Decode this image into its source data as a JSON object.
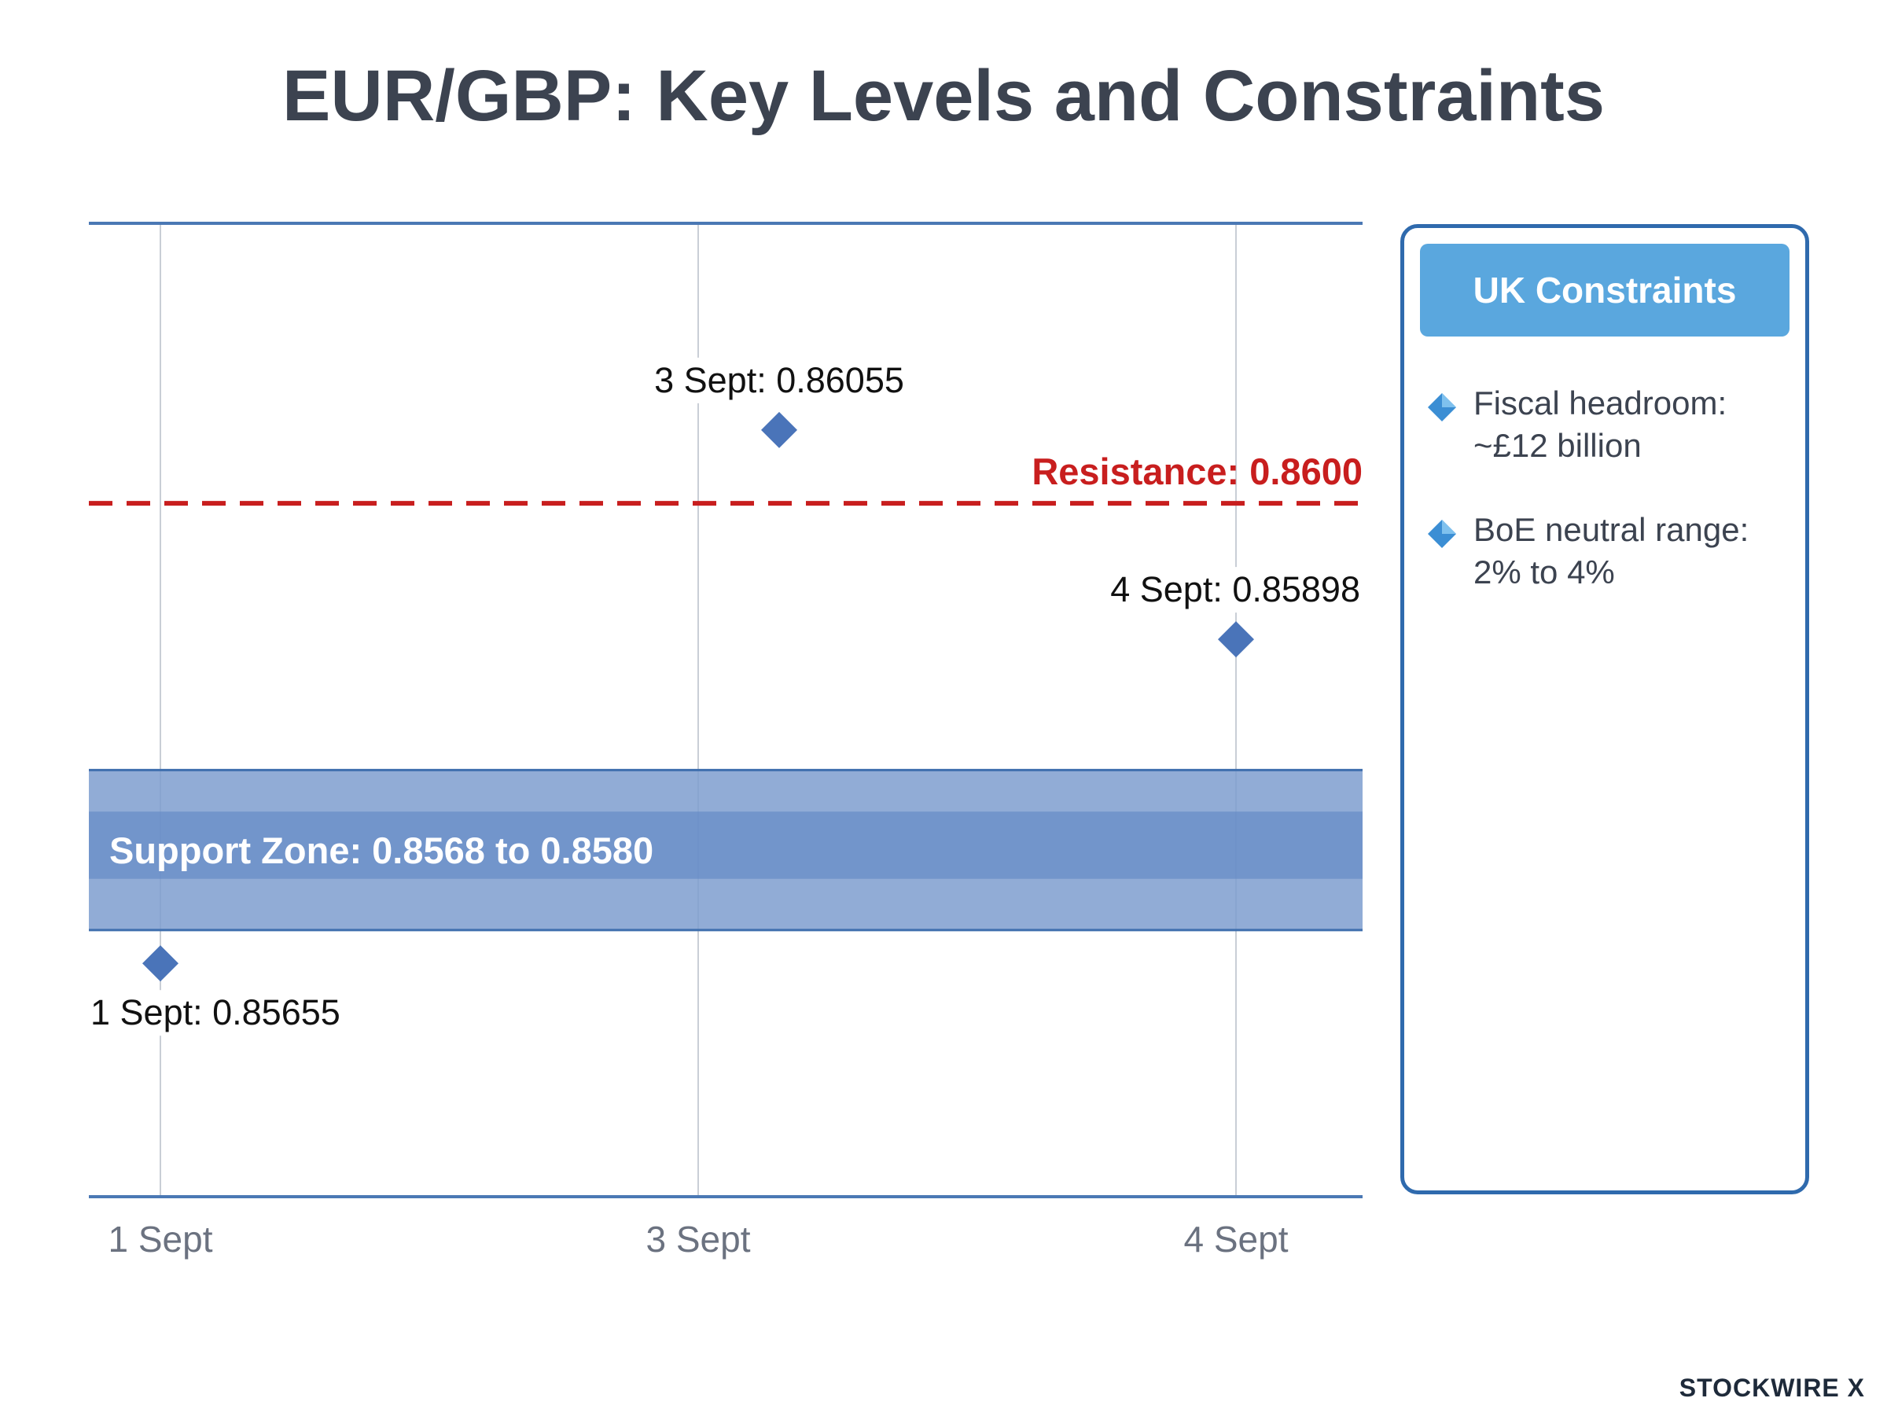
{
  "title": "EUR/GBP: Key Levels and Constraints",
  "chart_data": {
    "type": "scatter",
    "title": "EUR/GBP: Key Levels and Constraints",
    "categories": [
      "1 Sept",
      "3 Sept",
      "4 Sept"
    ],
    "points": [
      {
        "x": "1 Sept",
        "y": 0.85655,
        "label": "1 Sept: 0.85655"
      },
      {
        "x": "3 Sept",
        "y": 0.86055,
        "label": "3 Sept: 0.86055"
      },
      {
        "x": "4 Sept",
        "y": 0.85898,
        "label": "4 Sept: 0.85898"
      }
    ],
    "resistance": {
      "value": 0.86,
      "label": "Resistance: 0.8600",
      "color": "#c81e1e",
      "style": "dashed"
    },
    "support_zone": {
      "low": 0.8568,
      "high": 0.858,
      "label": "Support Zone: 0.8568 to 0.8580",
      "color": "#5a84c2"
    },
    "ylim": [
      0.8548,
      0.8621
    ],
    "grid": "vertical",
    "marker_color": "#4a74b9"
  },
  "panel": {
    "header": "UK Constraints",
    "items": [
      {
        "line1": "Fiscal headroom:",
        "line2": "~£12 billion"
      },
      {
        "line1": "BoE neutral range:",
        "line2": "2% to 4%"
      }
    ]
  },
  "brand": "STOCKWIRE X"
}
